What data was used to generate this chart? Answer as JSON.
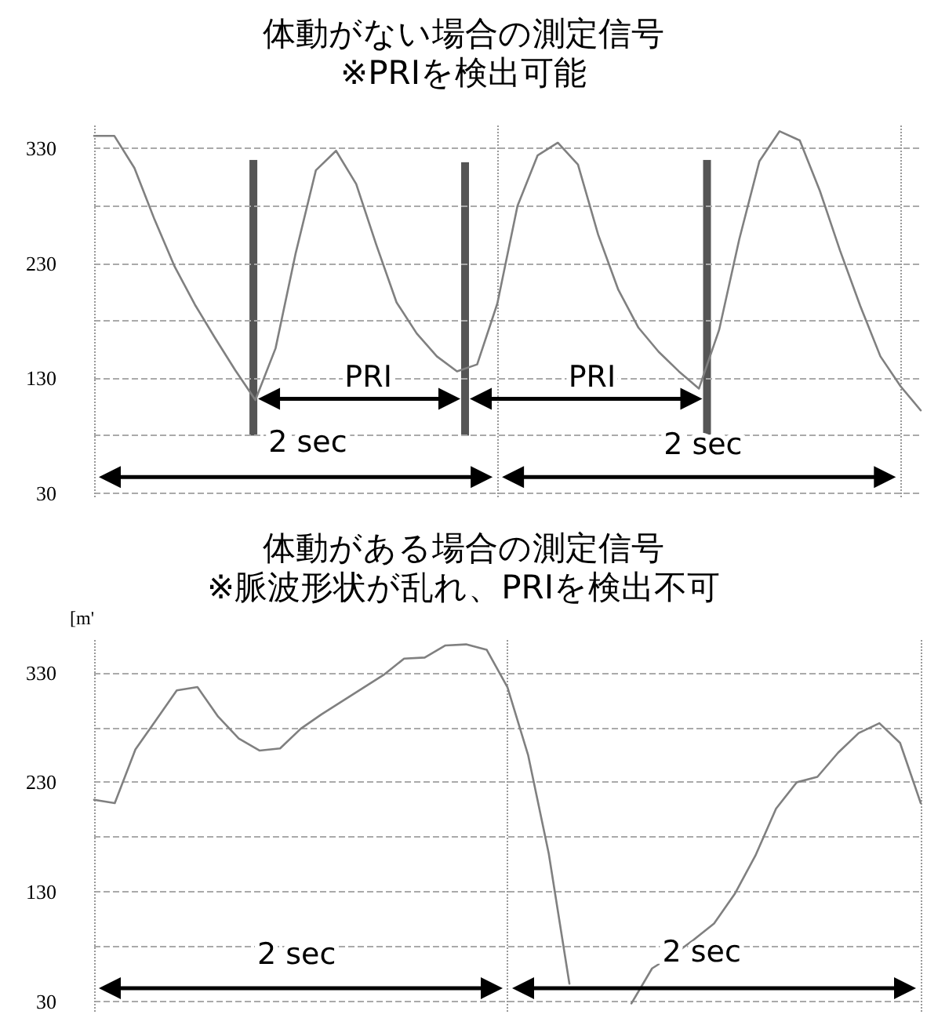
{
  "chart_data": [
    {
      "type": "line",
      "title": "体動がない場合の測定信号",
      "subtitle": "※PRIを検出可能",
      "categories": [
        null,
        null,
        null,
        null,
        null,
        null,
        null,
        null,
        null,
        null,
        null,
        null,
        null,
        null,
        null,
        null,
        null,
        null,
        null,
        null,
        null,
        null,
        null,
        null,
        null,
        null,
        null,
        null,
        null,
        null,
        null,
        null,
        null,
        null,
        null,
        null,
        null,
        null,
        null,
        null,
        null,
        null
      ],
      "series": [
        {
          "color": "#808080",
          "values": [
            341,
            341,
            313,
            268,
            227,
            194,
            165,
            137,
            111,
            156,
            239,
            311,
            328,
            299,
            246,
            196,
            169,
            149,
            136,
            142,
            195,
            280,
            324,
            335,
            316,
            255,
            207,
            174,
            153,
            136,
            121,
            172,
            251,
            319,
            345,
            337,
            293,
            241,
            193,
            149,
            123,
            102
          ]
        }
      ],
      "ylim": [
        25,
        350
      ],
      "yticks": [
        30,
        {
          "value": 80,
          "label": null
        },
        130,
        {
          "value": 180,
          "label": null
        },
        230,
        {
          "value": 280,
          "label": null
        },
        330
      ],
      "annotations": [
        "PRI",
        "PRI",
        "2 sec",
        "2 sec"
      ],
      "grid": true,
      "marker": "none",
      "line_style": "solid",
      "tick_labels": "y"
    },
    {
      "type": "line",
      "title": "体動がある場合の測定信号",
      "subtitle": "※脈波形状が乱れ、PRIを検出不可",
      "ylabel": "[m'",
      "categories": [
        null,
        null,
        null,
        null,
        null,
        null,
        null,
        null,
        null,
        null,
        null,
        null,
        null,
        null,
        null,
        null,
        null,
        null,
        null,
        null,
        null,
        null,
        null,
        null,
        null,
        null,
        null,
        null,
        null,
        null,
        null,
        null,
        null,
        null,
        null,
        null,
        null,
        null,
        null,
        null,
        null
      ],
      "series": [
        {
          "color": "#808080",
          "values": [
            214,
            211,
            260,
            287,
            314,
            317,
            290,
            270,
            259,
            261,
            279,
            292,
            304,
            316,
            328,
            343,
            344,
            355,
            356,
            351,
            317,
            255,
            165,
            46,
            null,
            null,
            null,
            null,
            null,
            null,
            null,
            null,
            null,
            null,
            null,
            null,
            null,
            null,
            null,
            null,
            null
          ]
        },
        {
          "color": "#808080",
          "values": [
            null,
            null,
            null,
            null,
            null,
            null,
            null,
            null,
            null,
            null,
            null,
            null,
            null,
            null,
            null,
            null,
            null,
            null,
            null,
            null,
            null,
            null,
            null,
            null,
            null,
            null,
            28,
            60,
            72,
            86,
            101,
            128,
            163,
            206,
            230,
            235,
            257,
            275,
            284,
            266,
            211
          ]
        }
      ],
      "ylim": [
        19,
        360
      ],
      "yticks": [
        30,
        {
          "value": 80,
          "label": null
        },
        130,
        {
          "value": 180,
          "label": null
        },
        230,
        {
          "value": 280,
          "label": null
        },
        330
      ],
      "annotations": [
        "2 sec",
        "2 sec"
      ],
      "grid": true,
      "marker": "none",
      "line_style": "solid",
      "tick_labels": "y"
    }
  ]
}
